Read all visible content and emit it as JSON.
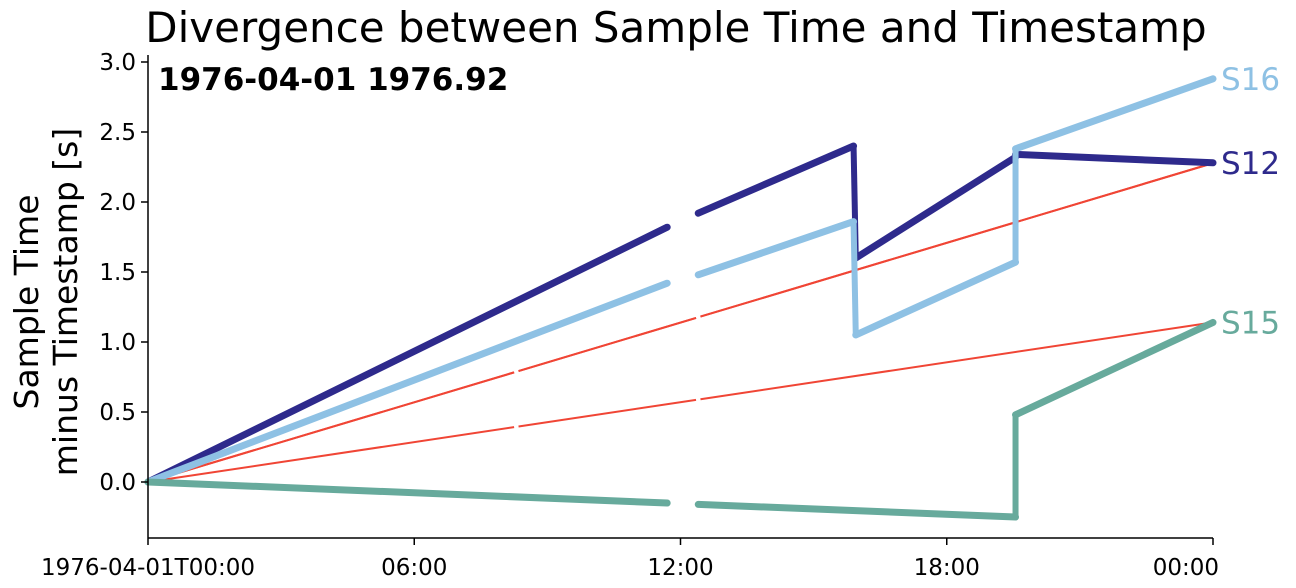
{
  "chart_data": {
    "type": "line",
    "title": "Divergence between Sample Time and Timestamp",
    "annotation": "1976-04-01 1976.92",
    "ylabel": [
      "Sample Time",
      "minus Timestamp [s]"
    ],
    "xlabel": "",
    "x_unit": "hours since 1976-04-01T00:00",
    "xlim": [
      0,
      24
    ],
    "ylim": [
      -0.4,
      3.05
    ],
    "x_ticks": [
      {
        "value": 0,
        "label": "1976-04-01T00:00"
      },
      {
        "value": 6,
        "label": "06:00"
      },
      {
        "value": 12,
        "label": "12:00"
      },
      {
        "value": 18,
        "label": "18:00"
      },
      {
        "value": 24,
        "label": "00:00"
      }
    ],
    "y_ticks": [
      {
        "value": 0.0,
        "label": "0.0"
      },
      {
        "value": 0.5,
        "label": "0.5"
      },
      {
        "value": 1.0,
        "label": "1.0"
      },
      {
        "value": 1.5,
        "label": "1.5"
      },
      {
        "value": 2.0,
        "label": "2.0"
      },
      {
        "value": 2.5,
        "label": "2.5"
      },
      {
        "value": 3.0,
        "label": "3.0"
      }
    ],
    "grid": false,
    "series": [
      {
        "name": "S12",
        "color": "#2e2a8c",
        "segments": [
          [
            [
              0,
              0
            ],
            [
              11.7,
              1.82
            ]
          ],
          [
            [
              12.4,
              1.92
            ],
            [
              15.9,
              2.4
            ]
          ],
          [
            [
              15.95,
              1.6
            ],
            [
              19.55,
              2.32
            ]
          ],
          [
            [
              19.55,
              2.34
            ],
            [
              24,
              2.28
            ]
          ]
        ]
      },
      {
        "name": "S16",
        "color": "#8ec1e4",
        "segments": [
          [
            [
              0,
              0
            ],
            [
              11.7,
              1.42
            ]
          ],
          [
            [
              12.4,
              1.48
            ],
            [
              15.9,
              1.86
            ]
          ],
          [
            [
              15.95,
              1.05
            ],
            [
              19.55,
              1.57
            ]
          ],
          [
            [
              19.55,
              2.38
            ],
            [
              24,
              2.88
            ]
          ]
        ]
      },
      {
        "name": "S15",
        "color": "#67aa9c",
        "segments": [
          [
            [
              0,
              0
            ],
            [
              11.7,
              -0.15
            ]
          ],
          [
            [
              12.4,
              -0.16
            ],
            [
              19.55,
              -0.25
            ]
          ],
          [
            [
              19.55,
              0.48
            ],
            [
              24,
              1.14
            ]
          ]
        ]
      }
    ],
    "reference_lines": {
      "color": "#f04535",
      "lines": [
        {
          "slope_per_hour": 0.0949
        },
        {
          "slope_per_hour": 0.0949
        },
        {
          "slope_per_hour": 0.0475
        }
      ],
      "gaps": [
        [
          8.25,
          8.35
        ],
        [
          12.35,
          12.45
        ]
      ]
    }
  }
}
